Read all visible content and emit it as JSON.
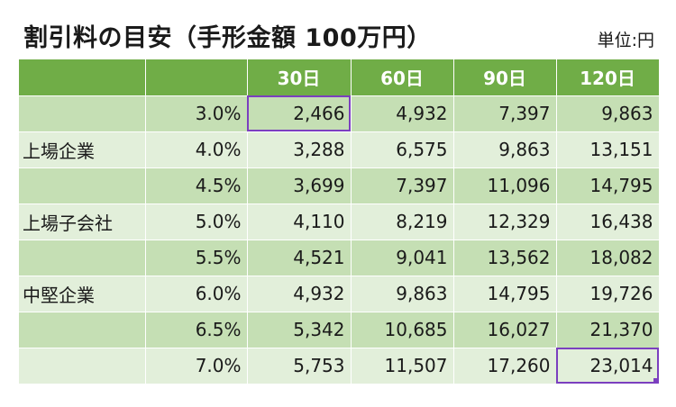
{
  "title": "割引料の目安（手形金額 100万円）",
  "unit": "単位:円",
  "header": [
    "",
    "",
    "30日",
    "60日",
    "90日",
    "120日"
  ],
  "rows": [
    {
      "label": "",
      "rate": "3.0%",
      "values": [
        "2,466",
        "4,932",
        "7,397",
        "9,863"
      ]
    },
    {
      "label": "上場企業",
      "rate": "4.0%",
      "values": [
        "3,288",
        "6,575",
        "9,863",
        "13,151"
      ]
    },
    {
      "label": "",
      "rate": "4.5%",
      "values": [
        "3,699",
        "7,397",
        "11,096",
        "14,795"
      ]
    },
    {
      "label": "上場子会社",
      "rate": "5.0%",
      "values": [
        "4,110",
        "8,219",
        "12,329",
        "16,438"
      ]
    },
    {
      "label": "",
      "rate": "5.5%",
      "values": [
        "4,521",
        "9,041",
        "13,562",
        "18,082"
      ]
    },
    {
      "label": "中堅企業",
      "rate": "6.0%",
      "values": [
        "4,932",
        "9,863",
        "14,795",
        "19,726"
      ]
    },
    {
      "label": "",
      "rate": "6.5%",
      "values": [
        "5,342",
        "10,685",
        "16,027",
        "21,370"
      ]
    },
    {
      "label": "",
      "rate": "7.0%",
      "values": [
        "5,753",
        "11,507",
        "17,260",
        "23,014"
      ]
    }
  ]
}
